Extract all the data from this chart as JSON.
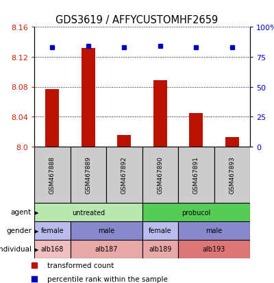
{
  "title": "GDS3619 / AFFYCUSTOMHF2659",
  "samples": [
    "GSM467888",
    "GSM467889",
    "GSM467892",
    "GSM467890",
    "GSM467891",
    "GSM467893"
  ],
  "bar_values": [
    8.077,
    8.132,
    8.016,
    8.089,
    8.045,
    8.013
  ],
  "percentile_values": [
    83,
    84,
    83,
    84,
    83,
    83
  ],
  "ymin": 8.0,
  "ymax": 8.16,
  "yticks_left": [
    8.0,
    8.04,
    8.08,
    8.12,
    8.16
  ],
  "yticks_right": [
    0,
    25,
    50,
    75,
    100
  ],
  "bar_color": "#bb1100",
  "dot_color": "#0000bb",
  "agent_row": {
    "label": "agent",
    "groups": [
      {
        "text": "untreated",
        "span": [
          0,
          3
        ],
        "color": "#b8e8b0"
      },
      {
        "text": "probucol",
        "span": [
          3,
          6
        ],
        "color": "#55cc55"
      }
    ]
  },
  "gender_row": {
    "label": "gender",
    "groups": [
      {
        "text": "female",
        "span": [
          0,
          1
        ],
        "color": "#bbbbee"
      },
      {
        "text": "male",
        "span": [
          1,
          3
        ],
        "color": "#8888cc"
      },
      {
        "text": "female",
        "span": [
          3,
          4
        ],
        "color": "#bbbbee"
      },
      {
        "text": "male",
        "span": [
          4,
          6
        ],
        "color": "#8888cc"
      }
    ]
  },
  "individual_row": {
    "label": "individual",
    "groups": [
      {
        "text": "alb168",
        "span": [
          0,
          1
        ],
        "color": "#f0c0c0"
      },
      {
        "text": "alb187",
        "span": [
          1,
          3
        ],
        "color": "#e8a8a8"
      },
      {
        "text": "alb189",
        "span": [
          3,
          4
        ],
        "color": "#e8a8a8"
      },
      {
        "text": "alb193",
        "span": [
          4,
          6
        ],
        "color": "#dd7777"
      }
    ]
  },
  "legend_items": [
    {
      "label": "transformed count",
      "color": "#bb1100"
    },
    {
      "label": "percentile rank within the sample",
      "color": "#0000bb"
    }
  ]
}
